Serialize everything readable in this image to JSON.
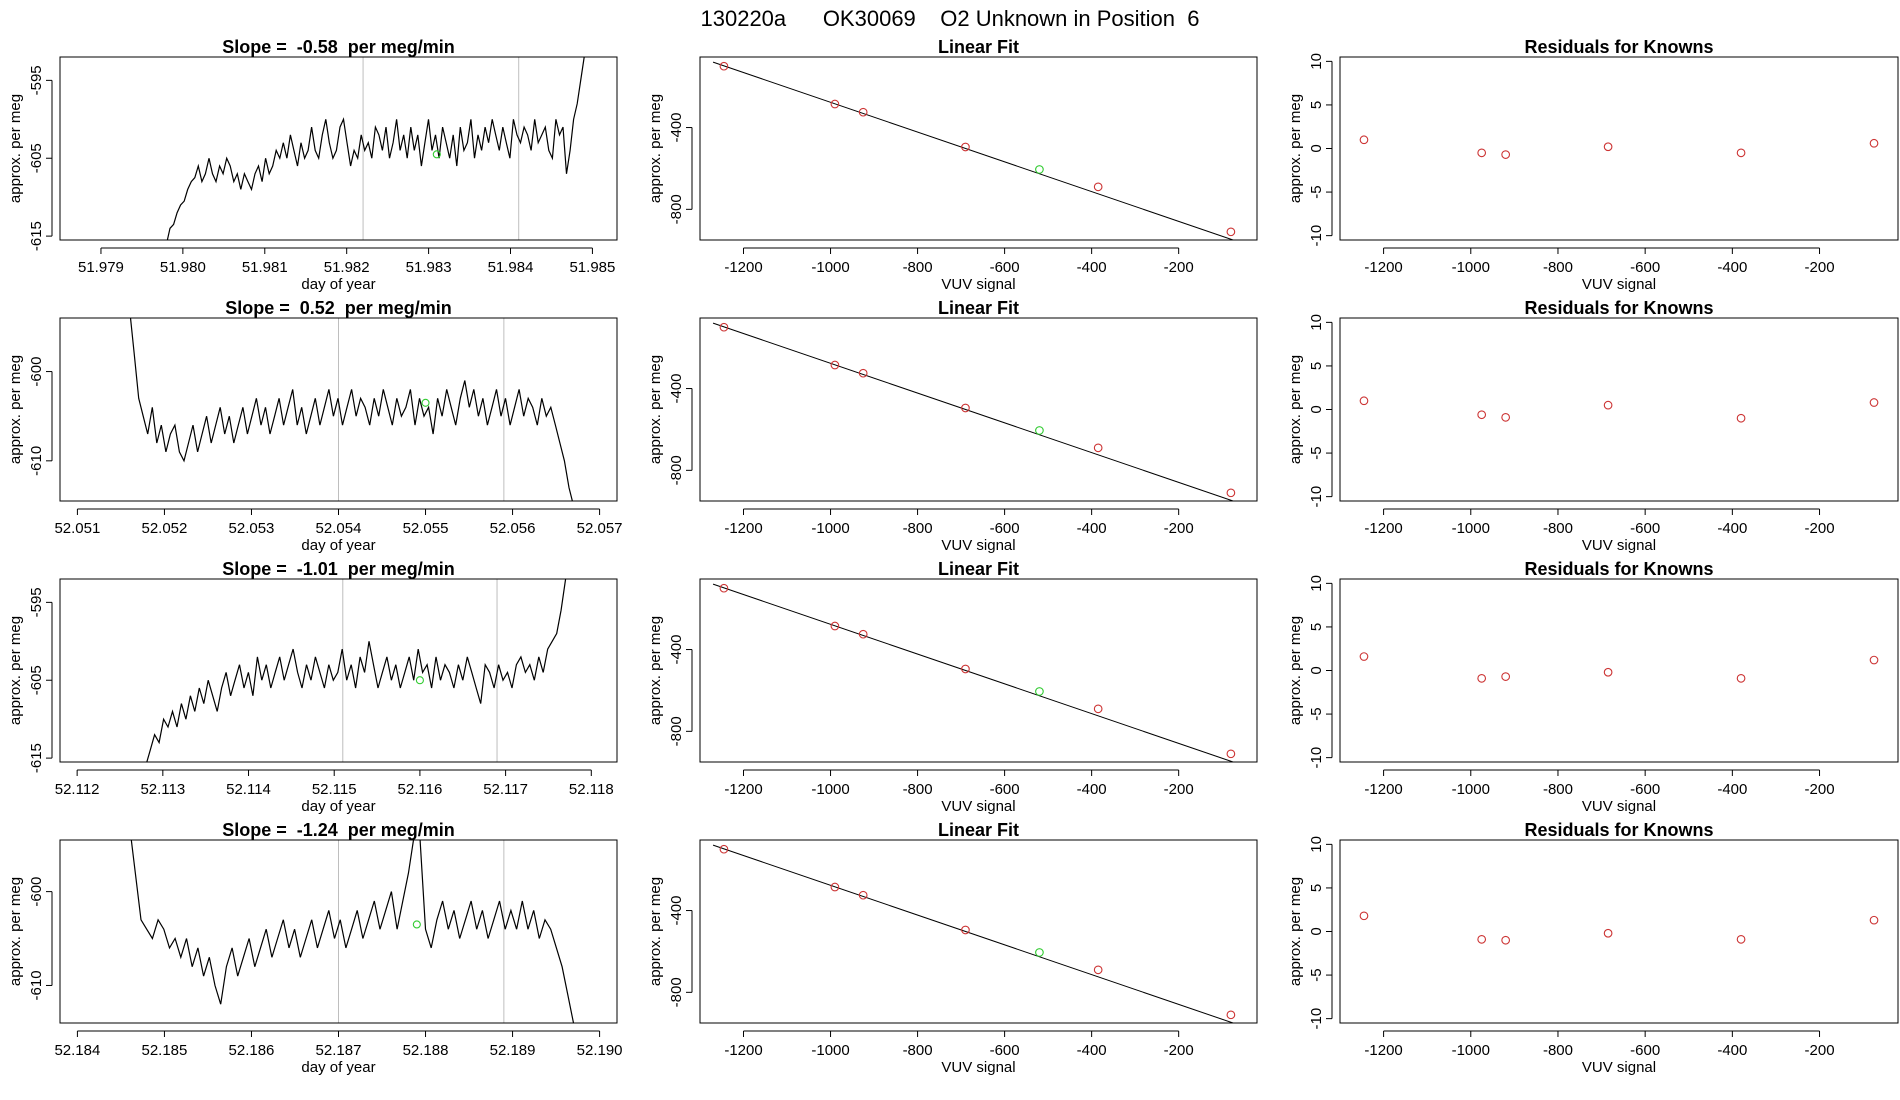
{
  "header": {
    "title": "130220a      OK30069    O2 Unknown in Position  6"
  },
  "colors": {
    "known": "#cc3333",
    "unknown": "#33cc33",
    "line": "#000000",
    "vline": "#bebebe",
    "frame": "#000000"
  },
  "chart_data": [
    {
      "type": "line",
      "panel": "time-row-1",
      "title": "Slope =  -0.58  per meg/min",
      "xlabel": "day of year",
      "ylabel": "approx. per meg",
      "xlim": [
        51.9785,
        51.9853
      ],
      "ylim": [
        -615.5,
        -592.0
      ],
      "xticks": [
        "51.979",
        "51.980",
        "51.981",
        "51.982",
        "51.983",
        "51.984",
        "51.985"
      ],
      "xtick_values": [
        51.979,
        51.98,
        51.981,
        51.982,
        51.983,
        51.984,
        51.985
      ],
      "yticks": [
        "-615",
        "-605",
        "-595"
      ],
      "ytick_values": [
        -615,
        -605,
        -595
      ],
      "x_start": 51.9798,
      "x_end": 51.9849,
      "values": [
        -616,
        -614,
        -613.5,
        -612,
        -611,
        -610.5,
        -609,
        -608,
        -607.5,
        -606,
        -608,
        -607,
        -605,
        -607,
        -608,
        -606,
        -607,
        -605,
        -606,
        -608,
        -607,
        -609,
        -607,
        -608,
        -609,
        -607,
        -606,
        -608,
        -605,
        -607,
        -606,
        -604,
        -605,
        -603,
        -605,
        -602,
        -604,
        -606,
        -603,
        -605,
        -604,
        -601,
        -604,
        -605,
        -602,
        -600,
        -603,
        -605,
        -604,
        -601,
        -600,
        -603,
        -606,
        -604,
        -605,
        -602,
        -604,
        -603,
        -605,
        -601,
        -602,
        -604,
        -601,
        -605,
        -603,
        -600,
        -604,
        -602,
        -605,
        -601,
        -604,
        -602,
        -606,
        -603,
        -600,
        -604,
        -602,
        -605,
        -601,
        -603,
        -605,
        -602,
        -606,
        -601,
        -604,
        -603,
        -600,
        -605,
        -602,
        -604,
        -601,
        -603,
        -600,
        -602,
        -604,
        -601,
        -603,
        -605,
        -600,
        -602,
        -603,
        -601,
        -602,
        -604,
        -600,
        -603,
        -602,
        -601,
        -604,
        -605,
        -600,
        -602,
        -601,
        -607,
        -604,
        -600,
        -598,
        -595,
        -592
      ],
      "vlines": [
        51.9822,
        51.9841
      ],
      "unknown_point": {
        "x": 51.9831,
        "y": -604.5
      }
    },
    {
      "type": "line",
      "panel": "time-row-2",
      "title": "Slope =  0.52  per meg/min",
      "xlabel": "day of year",
      "ylabel": "approx. per meg",
      "xlim": [
        52.0508,
        52.0572
      ],
      "ylim": [
        -614.5,
        -594.0
      ],
      "xticks": [
        "52.051",
        "52.052",
        "52.053",
        "52.054",
        "52.055",
        "52.056",
        "52.057"
      ],
      "xtick_values": [
        52.051,
        52.052,
        52.053,
        52.054,
        52.055,
        52.056,
        52.057
      ],
      "yticks": [
        "-610",
        "-600"
      ],
      "ytick_values": [
        -610,
        -600
      ],
      "x_start": 52.0516,
      "x_end": 52.0567,
      "values": [
        -593,
        -598,
        -603,
        -605,
        -607,
        -604,
        -608,
        -606,
        -609,
        -607,
        -606,
        -609,
        -610,
        -608,
        -606,
        -609,
        -607,
        -605,
        -608,
        -606,
        -604,
        -607,
        -605,
        -608,
        -606,
        -604,
        -607,
        -605,
        -603,
        -606,
        -604,
        -607,
        -605,
        -603,
        -606,
        -604,
        -602,
        -606,
        -604,
        -607,
        -605,
        -603,
        -606,
        -604,
        -602,
        -605,
        -603,
        -606,
        -604,
        -602,
        -605,
        -603,
        -604,
        -606,
        -603,
        -605,
        -602,
        -604,
        -606,
        -603,
        -605,
        -604,
        -602,
        -606,
        -603,
        -605,
        -604,
        -607,
        -603,
        -605,
        -602,
        -604,
        -606,
        -603,
        -601,
        -604,
        -602,
        -605,
        -603,
        -606,
        -604,
        -602,
        -605,
        -603,
        -606,
        -604,
        -602,
        -605,
        -603,
        -604,
        -606,
        -603,
        -605,
        -604,
        -606,
        -608,
        -610,
        -613,
        -615
      ],
      "vlines": [
        52.054,
        52.0559
      ],
      "unknown_point": {
        "x": 52.055,
        "y": -603.5
      }
    },
    {
      "type": "line",
      "panel": "time-row-3",
      "title": "Slope =  -1.01  per meg/min",
      "xlabel": "day of year",
      "ylabel": "approx. per meg",
      "xlim": [
        52.1118,
        52.1183
      ],
      "ylim": [
        -615.5,
        -592.0
      ],
      "xticks": [
        "52.112",
        "52.113",
        "52.114",
        "52.115",
        "52.116",
        "52.117",
        "52.118"
      ],
      "xtick_values": [
        52.112,
        52.113,
        52.114,
        52.115,
        52.116,
        52.117,
        52.118
      ],
      "yticks": [
        "-615",
        "-605",
        "-595"
      ],
      "ytick_values": [
        -615,
        -605,
        -595
      ],
      "x_start": 52.1128,
      "x_end": 52.1177,
      "values": [
        -616,
        -614,
        -612,
        -613,
        -610,
        -611,
        -609,
        -611,
        -608,
        -610,
        -607,
        -609,
        -606,
        -608,
        -605,
        -607,
        -609,
        -606,
        -604,
        -607,
        -605,
        -603,
        -606,
        -604,
        -607,
        -602,
        -605,
        -603,
        -606,
        -604,
        -602,
        -605,
        -603,
        -601,
        -604,
        -606,
        -603,
        -605,
        -602,
        -604,
        -606,
        -603,
        -605,
        -604,
        -601,
        -605,
        -603,
        -606,
        -602,
        -604,
        -600,
        -603,
        -606,
        -604,
        -602,
        -605,
        -603,
        -606,
        -604,
        -602,
        -605,
        -601,
        -604,
        -603,
        -606,
        -602,
        -605,
        -603,
        -604,
        -606,
        -603,
        -605,
        -602,
        -604,
        -606,
        -608,
        -603,
        -604,
        -606,
        -603,
        -605,
        -604,
        -606,
        -603,
        -602,
        -604,
        -603,
        -605,
        -602,
        -604,
        -601,
        -600,
        -599,
        -596,
        -592
      ],
      "vlines": [
        52.1151,
        52.1169
      ],
      "unknown_point": {
        "x": 52.116,
        "y": -605.0
      }
    },
    {
      "type": "line",
      "panel": "time-row-4",
      "title": "Slope =  -1.24  per meg/min",
      "xlabel": "day of year",
      "ylabel": "approx. per meg",
      "xlim": [
        52.1838,
        52.1902
      ],
      "ylim": [
        -614.0,
        -594.5
      ],
      "xticks": [
        "52.184",
        "52.185",
        "52.186",
        "52.187",
        "52.188",
        "52.189",
        "52.190"
      ],
      "xtick_values": [
        52.184,
        52.185,
        52.186,
        52.187,
        52.188,
        52.189,
        52.19
      ],
      "yticks": [
        "-610",
        "-600"
      ],
      "ytick_values": [
        -610,
        -600
      ],
      "x_start": 52.1846,
      "x_end": 52.1897,
      "values": [
        -593,
        -598,
        -603,
        -604,
        -605,
        -603,
        -604,
        -606,
        -605,
        -607,
        -605,
        -608,
        -606,
        -609,
        -607,
        -610,
        -612,
        -608,
        -606,
        -609,
        -607,
        -605,
        -608,
        -606,
        -604,
        -607,
        -605,
        -603,
        -606,
        -604,
        -607,
        -605,
        -603,
        -606,
        -604,
        -602,
        -605,
        -603,
        -606,
        -604,
        -602,
        -605,
        -603,
        -601,
        -604,
        -602,
        -600,
        -604,
        -601,
        -598,
        -594,
        -594,
        -604,
        -606,
        -603,
        -601,
        -604,
        -602,
        -605,
        -603,
        -601,
        -604,
        -602,
        -605,
        -603,
        -601,
        -604,
        -602,
        -604,
        -601,
        -604,
        -602,
        -605,
        -603,
        -604,
        -606,
        -608,
        -611,
        -614
      ],
      "vlines": [
        52.187,
        52.1889
      ],
      "unknown_point": {
        "x": 52.1879,
        "y": -603.5
      }
    },
    {
      "type": "scatter",
      "panel": "fit-row-1",
      "title": "Linear Fit",
      "xlabel": "VUV signal",
      "ylabel": "approx. per meg",
      "xlim": [
        -1300,
        -20
      ],
      "ylim": [
        -950,
        -55
      ],
      "xticks": [
        "-1200",
        "-1000",
        "-800",
        "-600",
        "-400",
        "-200"
      ],
      "xtick_values": [
        -1200,
        -1000,
        -800,
        -600,
        -400,
        -200
      ],
      "yticks": [
        "-800",
        "-400"
      ],
      "ytick_values": [
        -800,
        -400
      ],
      "fit_line": {
        "x": [
          -1270,
          -75
        ],
        "y": [
          -80,
          -950
        ]
      },
      "knowns": {
        "x": [
          -1245,
          -990,
          -925,
          -690,
          -385,
          -80
        ],
        "y": [
          -100,
          -285,
          -325,
          -495,
          -690,
          -910
        ]
      },
      "unknown": {
        "x": [
          -520
        ],
        "y": [
          -605
        ]
      }
    },
    {
      "type": "scatter",
      "panel": "fit-row-2",
      "title": "Linear Fit",
      "xlabel": "VUV signal",
      "ylabel": "approx. per meg",
      "xlim": [
        -1300,
        -20
      ],
      "ylim": [
        -950,
        -55
      ],
      "xticks": [
        "-1200",
        "-1000",
        "-800",
        "-600",
        "-400",
        "-200"
      ],
      "xtick_values": [
        -1200,
        -1000,
        -800,
        -600,
        -400,
        -200
      ],
      "yticks": [
        "-800",
        "-400"
      ],
      "ytick_values": [
        -800,
        -400
      ],
      "fit_line": {
        "x": [
          -1270,
          -75
        ],
        "y": [
          -80,
          -950
        ]
      },
      "knowns": {
        "x": [
          -1245,
          -990,
          -925,
          -690,
          -385,
          -80
        ],
        "y": [
          -100,
          -285,
          -325,
          -495,
          -690,
          -910
        ]
      },
      "unknown": {
        "x": [
          -520
        ],
        "y": [
          -605
        ]
      }
    },
    {
      "type": "scatter",
      "panel": "fit-row-3",
      "title": "Linear Fit",
      "xlabel": "VUV signal",
      "ylabel": "approx. per meg",
      "xlim": [
        -1300,
        -20
      ],
      "ylim": [
        -950,
        -55
      ],
      "xticks": [
        "-1200",
        "-1000",
        "-800",
        "-600",
        "-400",
        "-200"
      ],
      "xtick_values": [
        -1200,
        -1000,
        -800,
        -600,
        -400,
        -200
      ],
      "yticks": [
        "-800",
        "-400"
      ],
      "ytick_values": [
        -800,
        -400
      ],
      "fit_line": {
        "x": [
          -1270,
          -75
        ],
        "y": [
          -80,
          -950
        ]
      },
      "knowns": {
        "x": [
          -1245,
          -990,
          -925,
          -690,
          -385,
          -80
        ],
        "y": [
          -100,
          -285,
          -325,
          -495,
          -690,
          -910
        ]
      },
      "unknown": {
        "x": [
          -520
        ],
        "y": [
          -605
        ]
      }
    },
    {
      "type": "scatter",
      "panel": "fit-row-4",
      "title": "Linear Fit",
      "xlabel": "VUV signal",
      "ylabel": "approx. per meg",
      "xlim": [
        -1300,
        -20
      ],
      "ylim": [
        -950,
        -55
      ],
      "xticks": [
        "-1200",
        "-1000",
        "-800",
        "-600",
        "-400",
        "-200"
      ],
      "xtick_values": [
        -1200,
        -1000,
        -800,
        -600,
        -400,
        -200
      ],
      "yticks": [
        "-800",
        "-400"
      ],
      "ytick_values": [
        -800,
        -400
      ],
      "fit_line": {
        "x": [
          -1270,
          -75
        ],
        "y": [
          -80,
          -950
        ]
      },
      "knowns": {
        "x": [
          -1245,
          -990,
          -925,
          -690,
          -385,
          -80
        ],
        "y": [
          -100,
          -285,
          -325,
          -495,
          -690,
          -910
        ]
      },
      "unknown": {
        "x": [
          -520
        ],
        "y": [
          -605
        ]
      }
    },
    {
      "type": "scatter",
      "panel": "resid-row-1",
      "title": "Residuals for Knowns",
      "xlabel": "VUV signal",
      "ylabel": "approx. per meg",
      "xlim": [
        -1300,
        -20
      ],
      "ylim": [
        -10.5,
        10.5
      ],
      "xticks": [
        "-1200",
        "-1000",
        "-800",
        "-600",
        "-400",
        "-200"
      ],
      "xtick_values": [
        -1200,
        -1000,
        -800,
        -600,
        -400,
        -200
      ],
      "yticks": [
        "-10",
        "-5",
        "0",
        "5",
        "10"
      ],
      "ytick_values": [
        -10,
        -5,
        0,
        5,
        10
      ],
      "knowns": {
        "x": [
          -1245,
          -975,
          -920,
          -685,
          -380,
          -75
        ],
        "y": [
          1.0,
          -0.5,
          -0.7,
          0.2,
          -0.5,
          0.6
        ]
      }
    },
    {
      "type": "scatter",
      "panel": "resid-row-2",
      "title": "Residuals for Knowns",
      "xlabel": "VUV signal",
      "ylabel": "approx. per meg",
      "xlim": [
        -1300,
        -20
      ],
      "ylim": [
        -10.5,
        10.5
      ],
      "xticks": [
        "-1200",
        "-1000",
        "-800",
        "-600",
        "-400",
        "-200"
      ],
      "xtick_values": [
        -1200,
        -1000,
        -800,
        -600,
        -400,
        -200
      ],
      "yticks": [
        "-10",
        "-5",
        "0",
        "5",
        "10"
      ],
      "ytick_values": [
        -10,
        -5,
        0,
        5,
        10
      ],
      "knowns": {
        "x": [
          -1245,
          -975,
          -920,
          -685,
          -380,
          -75
        ],
        "y": [
          1.0,
          -0.6,
          -0.9,
          0.5,
          -1.0,
          0.8
        ]
      }
    },
    {
      "type": "scatter",
      "panel": "resid-row-3",
      "title": "Residuals for Knowns",
      "xlabel": "VUV signal",
      "ylabel": "approx. per meg",
      "xlim": [
        -1300,
        -20
      ],
      "ylim": [
        -10.5,
        10.5
      ],
      "xticks": [
        "-1200",
        "-1000",
        "-800",
        "-600",
        "-400",
        "-200"
      ],
      "xtick_values": [
        -1200,
        -1000,
        -800,
        -600,
        -400,
        -200
      ],
      "yticks": [
        "-10",
        "-5",
        "0",
        "5",
        "10"
      ],
      "ytick_values": [
        -10,
        -5,
        0,
        5,
        10
      ],
      "knowns": {
        "x": [
          -1245,
          -975,
          -920,
          -685,
          -380,
          -75
        ],
        "y": [
          1.6,
          -0.9,
          -0.7,
          -0.2,
          -0.9,
          1.2
        ]
      }
    },
    {
      "type": "scatter",
      "panel": "resid-row-4",
      "title": "Residuals for Knowns",
      "xlabel": "VUV signal",
      "ylabel": "approx. per meg",
      "xlim": [
        -1300,
        -20
      ],
      "ylim": [
        -10.5,
        10.5
      ],
      "xticks": [
        "-1200",
        "-1000",
        "-800",
        "-600",
        "-400",
        "-200"
      ],
      "xtick_values": [
        -1200,
        -1000,
        -800,
        -600,
        -400,
        -200
      ],
      "yticks": [
        "-10",
        "-5",
        "0",
        "5",
        "10"
      ],
      "ytick_values": [
        -10,
        -5,
        0,
        5,
        10
      ],
      "knowns": {
        "x": [
          -1245,
          -975,
          -920,
          -685,
          -380,
          -75
        ],
        "y": [
          1.8,
          -0.9,
          -1.0,
          -0.2,
          -0.9,
          1.3
        ]
      }
    }
  ]
}
